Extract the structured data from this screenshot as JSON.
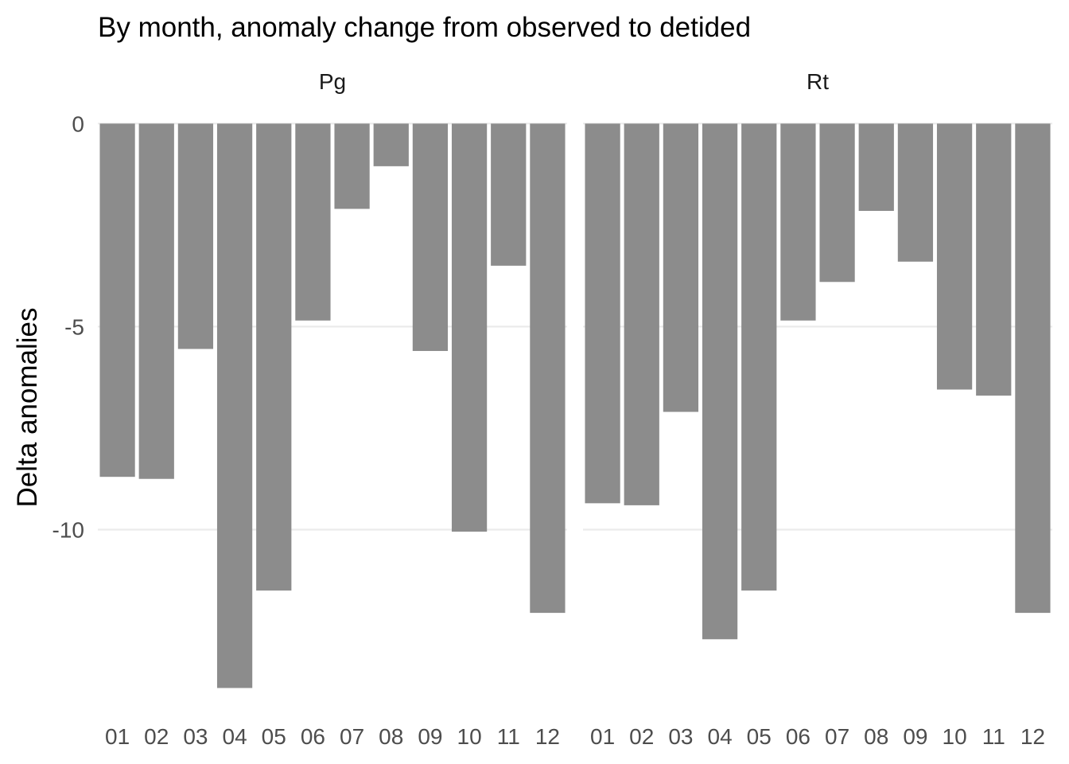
{
  "chart_data": {
    "type": "bar",
    "title": "By month, anomaly change from observed to detided",
    "xlabel": "",
    "ylabel": "Delta anomalies",
    "categories": [
      "01",
      "02",
      "03",
      "04",
      "05",
      "06",
      "07",
      "08",
      "09",
      "10",
      "11",
      "12"
    ],
    "y_ticks": [
      0,
      -5,
      -10
    ],
    "y_tick_labels": [
      "0",
      "-5",
      "-10"
    ],
    "ylim": [
      -14.4,
      0.3
    ],
    "grid": true,
    "bar_color": "#8c8c8c",
    "facets": [
      {
        "label": "Pg",
        "values": [
          -8.7,
          -8.75,
          -5.55,
          -13.9,
          -11.5,
          -4.85,
          -2.1,
          -1.05,
          -5.6,
          -10.05,
          -3.5,
          -12.05
        ]
      },
      {
        "label": "Rt",
        "values": [
          -9.35,
          -9.4,
          -7.1,
          -12.7,
          -11.5,
          -4.85,
          -3.9,
          -2.15,
          -3.4,
          -6.55,
          -6.7,
          -12.05
        ]
      }
    ]
  }
}
